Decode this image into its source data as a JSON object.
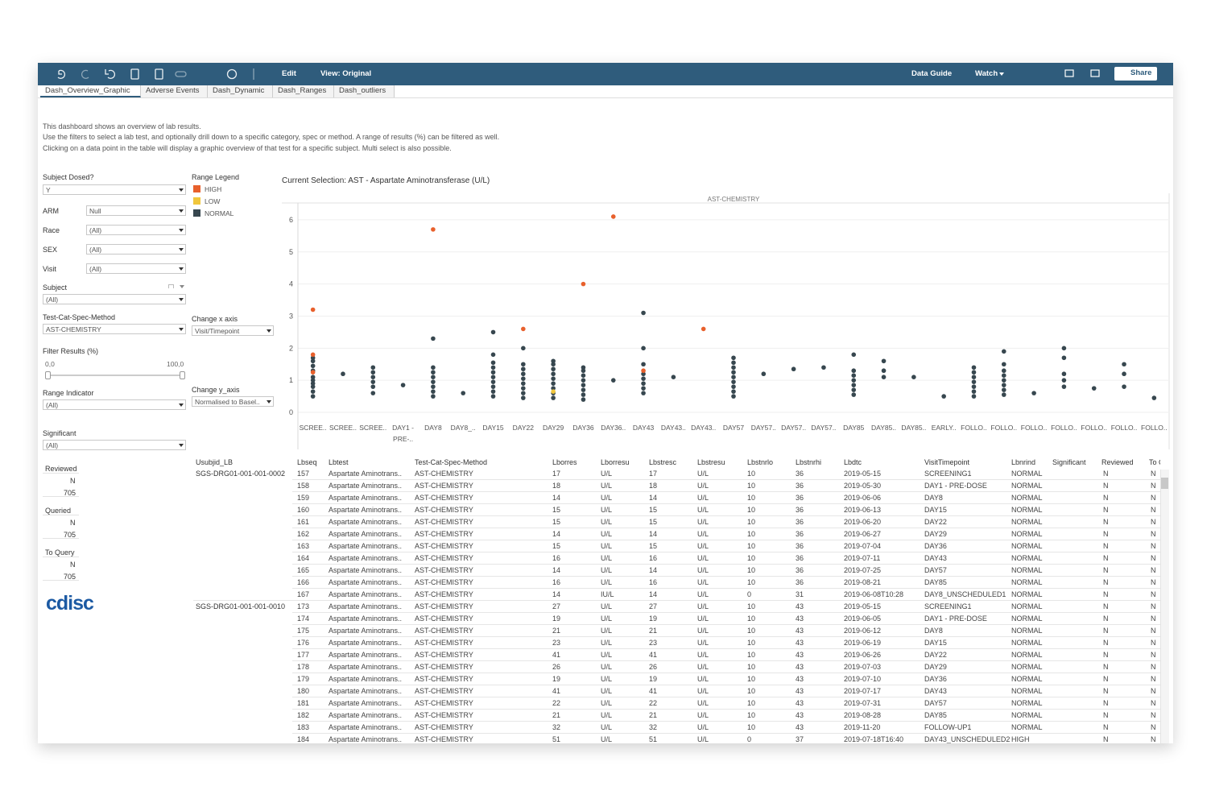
{
  "toolbar": {
    "edit": "Edit",
    "view": "View: Original",
    "data_guide": "Data Guide",
    "watch": "Watch",
    "share": "Share"
  },
  "tabs": [
    "Dash_Overview_Graphic",
    "Adverse Events",
    "Dash_Dynamic",
    "Dash_Ranges",
    "Dash_outliers"
  ],
  "description": [
    "This dashboard shows an overview of lab results.",
    "Use the filters to select a lab test, and optionally drill down to a specific category, spec or method. A range of results (%) can be filtered as well.",
    "Clicking on a data point in the table will display a graphic overview of that test for a specific subject. Multi select is also possible."
  ],
  "filters": [
    {
      "label": "Subject Dosed?",
      "value": "Y"
    },
    {
      "label": "ARM",
      "value": "Null"
    },
    {
      "label": "Race",
      "value": "(All)"
    },
    {
      "label": "SEX",
      "value": "(All)"
    },
    {
      "label": "Visit",
      "value": "(All)"
    },
    {
      "label": "Subject",
      "value": "(All)"
    },
    {
      "label": "Test-Cat-Spec-Method",
      "value": "AST-CHEMISTRY"
    },
    {
      "label": "Range Indicator",
      "value": "(All)"
    },
    {
      "label": "Significant",
      "value": "(All)"
    }
  ],
  "filter_results": {
    "label": "Filter Results (%)",
    "min": "0,0",
    "max": "100,0"
  },
  "counters": [
    {
      "label": "Reviewed",
      "value": "N",
      "count": "705"
    },
    {
      "label": "Queried",
      "value": "N",
      "count": "705"
    },
    {
      "label": "To Query",
      "value": "N",
      "count": "705"
    }
  ],
  "logo": "cdisc",
  "axis_controls": [
    {
      "label": "Change x axis",
      "value": "Visit/Timepoint"
    },
    {
      "label": "Change y_axis",
      "value": "Normalised to Basel.."
    }
  ],
  "chart": {
    "type": "strip",
    "title": "Current Selection: AST - Aspartate Aminotransferase (U/L)",
    "panel": "AST-CHEMISTRY",
    "legend_title": "Range Legend",
    "grid": true,
    "ylim": [
      -0.2,
      6.5
    ],
    "yticks": [
      0,
      1,
      2,
      3,
      4,
      5,
      6
    ],
    "categories": [
      "SCREE..",
      "SCREE..",
      "SCREE..",
      "DAY1 - PRE-..",
      "DAY8",
      "DAY8_..",
      "DAY15",
      "DAY22",
      "DAY29",
      "DAY36",
      "DAY36..",
      "DAY43",
      "DAY43..",
      "DAY43..",
      "DAY57",
      "DAY57..",
      "DAY57..",
      "DAY57..",
      "DAY85",
      "DAY85..",
      "DAY85..",
      "EARLY..",
      "FOLLO..",
      "FOLLO..",
      "FOLLO..",
      "FOLLO..",
      "FOLLO..",
      "FOLLO..",
      "FOLLO.."
    ],
    "series": [
      {
        "name": "HIGH",
        "color": "#e8602c",
        "values": [
          [
            3.2,
            1.8,
            1.25
          ],
          [],
          [],
          [],
          [
            5.7
          ],
          [],
          [],
          [
            2.6
          ],
          [],
          [
            4.0
          ],
          [
            6.1
          ],
          [
            1.3
          ],
          [],
          [
            2.6
          ],
          [],
          [],
          [],
          [],
          [],
          [],
          [],
          [],
          [],
          [],
          [],
          [],
          [],
          [],
          []
        ]
      },
      {
        "name": "LOW",
        "color": "#f0c63c",
        "values": [
          [],
          [],
          [],
          [],
          [],
          [],
          [],
          [],
          [
            0.65
          ],
          [],
          [],
          [],
          [],
          [],
          [],
          [],
          [],
          [],
          [],
          [],
          [],
          [],
          [],
          [],
          [],
          [],
          [],
          [],
          []
        ]
      },
      {
        "name": "NORMAL",
        "color": "#37474f",
        "values": [
          [
            0.5,
            0.65,
            0.8,
            0.9,
            1.0,
            1.1,
            1.3,
            1.45,
            1.6,
            1.7
          ],
          [
            1.2
          ],
          [
            0.6,
            0.8,
            0.95,
            1.1,
            1.25,
            1.4
          ],
          [
            0.85
          ],
          [
            0.5,
            0.65,
            0.8,
            0.95,
            1.1,
            1.25,
            1.4,
            2.3
          ],
          [
            0.6
          ],
          [
            0.5,
            0.65,
            0.8,
            0.95,
            1.1,
            1.25,
            1.4,
            1.55,
            1.8,
            2.5
          ],
          [
            0.45,
            0.6,
            0.75,
            0.9,
            1.05,
            1.2,
            1.35,
            1.5,
            2.0
          ],
          [
            0.45,
            0.6,
            0.75,
            0.9,
            1.05,
            1.2,
            1.35,
            1.5,
            1.6
          ],
          [
            0.4,
            0.55,
            0.7,
            0.85,
            1.0,
            1.15,
            1.3,
            1.4
          ],
          [
            1.0
          ],
          [
            0.6,
            0.75,
            0.9,
            1.05,
            1.2,
            1.5,
            2.0,
            3.1
          ],
          [
            1.1
          ],
          [],
          [
            0.5,
            0.65,
            0.8,
            0.95,
            1.1,
            1.25,
            1.4,
            1.55,
            1.7
          ],
          [
            1.2
          ],
          [
            1.35
          ],
          [
            1.4
          ],
          [
            0.55,
            0.7,
            0.85,
            1.0,
            1.15,
            1.3,
            1.8
          ],
          [
            1.1,
            1.3,
            1.6
          ],
          [
            1.1
          ],
          [
            0.5
          ],
          [
            0.5,
            0.65,
            0.8,
            0.95,
            1.1,
            1.25,
            1.4
          ],
          [
            0.55,
            0.7,
            0.85,
            1.0,
            1.15,
            1.3,
            1.5,
            1.9
          ],
          [
            0.6
          ],
          [
            0.8,
            1.0,
            1.2,
            1.7,
            2.0
          ],
          [
            0.75
          ],
          [
            0.8,
            1.2,
            1.5
          ],
          [
            0.45
          ]
        ]
      }
    ]
  },
  "table": {
    "columns": [
      "Usubjid_LB",
      "Lbseq",
      "Lbtest",
      "Test-Cat-Spec-Method",
      "Lborres",
      "Lborresu",
      "Lbstresc",
      "Lbstresu",
      "Lbstnrlo",
      "Lbstnrhi",
      "Lbdtc",
      "VisitTimepoint",
      "Lbnrind",
      "Significant",
      "Reviewed",
      "To Query"
    ],
    "groups": [
      {
        "subject": "SGS-DRG01-001-001-0002",
        "rows": [
          [
            "157",
            "Aspartate Aminotrans..",
            "AST-CHEMISTRY",
            "17",
            "U/L",
            "17",
            "U/L",
            "10",
            "36",
            "2019-05-15",
            "SCREENING1",
            "NORMAL",
            "N",
            "N"
          ],
          [
            "158",
            "Aspartate Aminotrans..",
            "AST-CHEMISTRY",
            "18",
            "U/L",
            "18",
            "U/L",
            "10",
            "36",
            "2019-05-30",
            "DAY1 - PRE-DOSE",
            "NORMAL",
            "N",
            "N"
          ],
          [
            "159",
            "Aspartate Aminotrans..",
            "AST-CHEMISTRY",
            "14",
            "U/L",
            "14",
            "U/L",
            "10",
            "36",
            "2019-06-06",
            "DAY8",
            "NORMAL",
            "N",
            "N"
          ],
          [
            "160",
            "Aspartate Aminotrans..",
            "AST-CHEMISTRY",
            "15",
            "U/L",
            "15",
            "U/L",
            "10",
            "36",
            "2019-06-13",
            "DAY15",
            "NORMAL",
            "N",
            "N"
          ],
          [
            "161",
            "Aspartate Aminotrans..",
            "AST-CHEMISTRY",
            "15",
            "U/L",
            "15",
            "U/L",
            "10",
            "36",
            "2019-06-20",
            "DAY22",
            "NORMAL",
            "N",
            "N"
          ],
          [
            "162",
            "Aspartate Aminotrans..",
            "AST-CHEMISTRY",
            "14",
            "U/L",
            "14",
            "U/L",
            "10",
            "36",
            "2019-06-27",
            "DAY29",
            "NORMAL",
            "N",
            "N"
          ],
          [
            "163",
            "Aspartate Aminotrans..",
            "AST-CHEMISTRY",
            "15",
            "U/L",
            "15",
            "U/L",
            "10",
            "36",
            "2019-07-04",
            "DAY36",
            "NORMAL",
            "N",
            "N"
          ],
          [
            "164",
            "Aspartate Aminotrans..",
            "AST-CHEMISTRY",
            "16",
            "U/L",
            "16",
            "U/L",
            "10",
            "36",
            "2019-07-11",
            "DAY43",
            "NORMAL",
            "N",
            "N"
          ],
          [
            "165",
            "Aspartate Aminotrans..",
            "AST-CHEMISTRY",
            "14",
            "U/L",
            "14",
            "U/L",
            "10",
            "36",
            "2019-07-25",
            "DAY57",
            "NORMAL",
            "N",
            "N"
          ],
          [
            "166",
            "Aspartate Aminotrans..",
            "AST-CHEMISTRY",
            "16",
            "U/L",
            "16",
            "U/L",
            "10",
            "36",
            "2019-08-21",
            "DAY85",
            "NORMAL",
            "N",
            "N"
          ],
          [
            "167",
            "Aspartate Aminotrans..",
            "AST-CHEMISTRY",
            "14",
            "IU/L",
            "14",
            "U/L",
            "0",
            "31",
            "2019-06-08T10:28",
            "DAY8_UNSCHEDULED1",
            "NORMAL",
            "N",
            "N"
          ]
        ]
      },
      {
        "subject": "SGS-DRG01-001-001-0010",
        "rows": [
          [
            "173",
            "Aspartate Aminotrans..",
            "AST-CHEMISTRY",
            "27",
            "U/L",
            "27",
            "U/L",
            "10",
            "43",
            "2019-05-15",
            "SCREENING1",
            "NORMAL",
            "N",
            "N"
          ],
          [
            "174",
            "Aspartate Aminotrans..",
            "AST-CHEMISTRY",
            "19",
            "U/L",
            "19",
            "U/L",
            "10",
            "43",
            "2019-06-05",
            "DAY1 - PRE-DOSE",
            "NORMAL",
            "N",
            "N"
          ],
          [
            "175",
            "Aspartate Aminotrans..",
            "AST-CHEMISTRY",
            "21",
            "U/L",
            "21",
            "U/L",
            "10",
            "43",
            "2019-06-12",
            "DAY8",
            "NORMAL",
            "N",
            "N"
          ],
          [
            "176",
            "Aspartate Aminotrans..",
            "AST-CHEMISTRY",
            "23",
            "U/L",
            "23",
            "U/L",
            "10",
            "43",
            "2019-06-19",
            "DAY15",
            "NORMAL",
            "N",
            "N"
          ],
          [
            "177",
            "Aspartate Aminotrans..",
            "AST-CHEMISTRY",
            "41",
            "U/L",
            "41",
            "U/L",
            "10",
            "43",
            "2019-06-26",
            "DAY22",
            "NORMAL",
            "N",
            "N"
          ],
          [
            "178",
            "Aspartate Aminotrans..",
            "AST-CHEMISTRY",
            "26",
            "U/L",
            "26",
            "U/L",
            "10",
            "43",
            "2019-07-03",
            "DAY29",
            "NORMAL",
            "N",
            "N"
          ],
          [
            "179",
            "Aspartate Aminotrans..",
            "AST-CHEMISTRY",
            "19",
            "U/L",
            "19",
            "U/L",
            "10",
            "43",
            "2019-07-10",
            "DAY36",
            "NORMAL",
            "N",
            "N"
          ],
          [
            "180",
            "Aspartate Aminotrans..",
            "AST-CHEMISTRY",
            "41",
            "U/L",
            "41",
            "U/L",
            "10",
            "43",
            "2019-07-17",
            "DAY43",
            "NORMAL",
            "N",
            "N"
          ],
          [
            "181",
            "Aspartate Aminotrans..",
            "AST-CHEMISTRY",
            "22",
            "U/L",
            "22",
            "U/L",
            "10",
            "43",
            "2019-07-31",
            "DAY57",
            "NORMAL",
            "N",
            "N"
          ],
          [
            "182",
            "Aspartate Aminotrans..",
            "AST-CHEMISTRY",
            "21",
            "U/L",
            "21",
            "U/L",
            "10",
            "43",
            "2019-08-28",
            "DAY85",
            "NORMAL",
            "N",
            "N"
          ],
          [
            "183",
            "Aspartate Aminotrans..",
            "AST-CHEMISTRY",
            "32",
            "U/L",
            "32",
            "U/L",
            "10",
            "43",
            "2019-11-20",
            "FOLLOW-UP1",
            "NORMAL",
            "N",
            "N"
          ],
          [
            "184",
            "Aspartate Aminotrans..",
            "AST-CHEMISTRY",
            "51",
            "U/L",
            "51",
            "U/L",
            "0",
            "37",
            "2019-07-18T16:40",
            "DAY43_UNSCHEDULED2",
            "HIGH",
            "N",
            "N"
          ]
        ]
      }
    ]
  }
}
